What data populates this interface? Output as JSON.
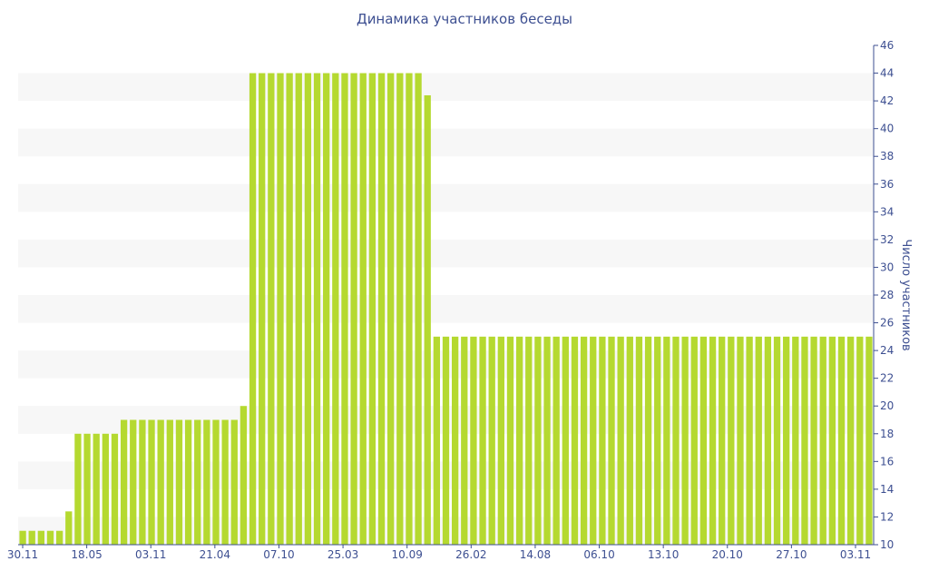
{
  "chart_data": {
    "type": "bar",
    "title": "Динамика участников беседы",
    "ylabel": "Число участников",
    "xlabel": "",
    "ylim": [
      10,
      46
    ],
    "y_ticks": [
      10,
      12,
      14,
      16,
      18,
      20,
      22,
      24,
      26,
      28,
      30,
      32,
      34,
      36,
      38,
      40,
      42,
      44,
      46
    ],
    "y_axis_position": "right",
    "grid": "horizontal alternating bands",
    "bar_color": "#b5d930",
    "x_tick_labels": [
      "30.11",
      "18.05",
      "03.11",
      "21.04",
      "07.10",
      "25.03",
      "10.09",
      "26.02",
      "14.08",
      "06.10",
      "13.10",
      "20.10",
      "27.10",
      "03.11"
    ],
    "values": [
      11,
      11,
      11,
      11,
      11,
      12.4,
      18,
      18,
      18,
      18,
      18,
      19,
      19,
      19,
      19,
      19,
      19,
      19,
      19,
      19,
      19,
      19,
      19,
      19,
      20,
      44,
      44,
      44,
      44,
      44,
      44,
      44,
      44,
      44,
      44,
      44,
      44,
      44,
      44,
      44,
      44,
      44,
      44,
      44,
      42.4,
      25,
      25,
      25,
      25,
      25,
      25,
      25,
      25,
      25,
      25,
      25,
      25,
      25,
      25,
      25,
      25,
      25,
      25,
      25,
      25,
      25,
      25,
      25,
      25,
      25,
      25,
      25,
      25,
      25,
      25,
      25,
      25,
      25,
      25,
      25,
      25,
      25,
      25,
      25,
      25,
      25,
      25,
      25,
      25,
      25,
      25,
      25,
      25
    ]
  }
}
